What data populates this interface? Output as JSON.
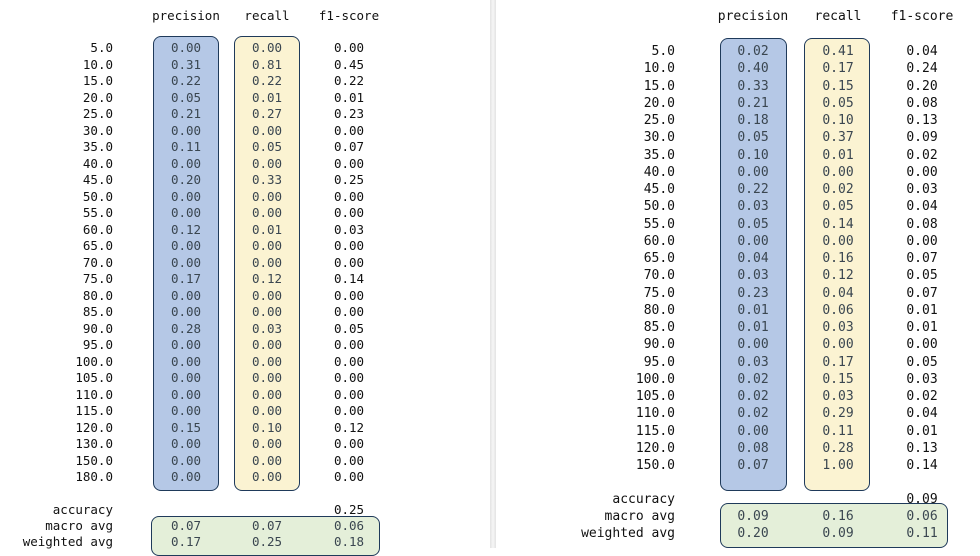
{
  "left": {
    "headers": [
      "precision",
      "recall",
      "f1-score"
    ],
    "rows": [
      {
        "label": "5.0",
        "precision": "0.00",
        "recall": "0.00",
        "f1": "0.00"
      },
      {
        "label": "10.0",
        "precision": "0.31",
        "recall": "0.81",
        "f1": "0.45"
      },
      {
        "label": "15.0",
        "precision": "0.22",
        "recall": "0.22",
        "f1": "0.22"
      },
      {
        "label": "20.0",
        "precision": "0.05",
        "recall": "0.01",
        "f1": "0.01"
      },
      {
        "label": "25.0",
        "precision": "0.21",
        "recall": "0.27",
        "f1": "0.23"
      },
      {
        "label": "30.0",
        "precision": "0.00",
        "recall": "0.00",
        "f1": "0.00"
      },
      {
        "label": "35.0",
        "precision": "0.11",
        "recall": "0.05",
        "f1": "0.07"
      },
      {
        "label": "40.0",
        "precision": "0.00",
        "recall": "0.00",
        "f1": "0.00"
      },
      {
        "label": "45.0",
        "precision": "0.20",
        "recall": "0.33",
        "f1": "0.25"
      },
      {
        "label": "50.0",
        "precision": "0.00",
        "recall": "0.00",
        "f1": "0.00"
      },
      {
        "label": "55.0",
        "precision": "0.00",
        "recall": "0.00",
        "f1": "0.00"
      },
      {
        "label": "60.0",
        "precision": "0.12",
        "recall": "0.01",
        "f1": "0.03"
      },
      {
        "label": "65.0",
        "precision": "0.00",
        "recall": "0.00",
        "f1": "0.00"
      },
      {
        "label": "70.0",
        "precision": "0.00",
        "recall": "0.00",
        "f1": "0.00"
      },
      {
        "label": "75.0",
        "precision": "0.17",
        "recall": "0.12",
        "f1": "0.14"
      },
      {
        "label": "80.0",
        "precision": "0.00",
        "recall": "0.00",
        "f1": "0.00"
      },
      {
        "label": "85.0",
        "precision": "0.00",
        "recall": "0.00",
        "f1": "0.00"
      },
      {
        "label": "90.0",
        "precision": "0.28",
        "recall": "0.03",
        "f1": "0.05"
      },
      {
        "label": "95.0",
        "precision": "0.00",
        "recall": "0.00",
        "f1": "0.00"
      },
      {
        "label": "100.0",
        "precision": "0.00",
        "recall": "0.00",
        "f1": "0.00"
      },
      {
        "label": "105.0",
        "precision": "0.00",
        "recall": "0.00",
        "f1": "0.00"
      },
      {
        "label": "110.0",
        "precision": "0.00",
        "recall": "0.00",
        "f1": "0.00"
      },
      {
        "label": "115.0",
        "precision": "0.00",
        "recall": "0.00",
        "f1": "0.00"
      },
      {
        "label": "120.0",
        "precision": "0.15",
        "recall": "0.10",
        "f1": "0.12"
      },
      {
        "label": "130.0",
        "precision": "0.00",
        "recall": "0.00",
        "f1": "0.00"
      },
      {
        "label": "150.0",
        "precision": "0.00",
        "recall": "0.00",
        "f1": "0.00"
      },
      {
        "label": "180.0",
        "precision": "0.00",
        "recall": "0.00",
        "f1": "0.00"
      }
    ],
    "accuracy": {
      "label": "accuracy",
      "f1": "0.25"
    },
    "macro_avg": {
      "label": "macro avg",
      "precision": "0.07",
      "recall": "0.07",
      "f1": "0.06"
    },
    "weighted_avg": {
      "label": "weighted avg",
      "precision": "0.17",
      "recall": "0.25",
      "f1": "0.18"
    }
  },
  "right": {
    "headers": [
      "precision",
      "recall",
      "f1-score"
    ],
    "rows": [
      {
        "label": "5.0",
        "precision": "0.02",
        "recall": "0.41",
        "f1": "0.04"
      },
      {
        "label": "10.0",
        "precision": "0.40",
        "recall": "0.17",
        "f1": "0.24"
      },
      {
        "label": "15.0",
        "precision": "0.33",
        "recall": "0.15",
        "f1": "0.20"
      },
      {
        "label": "20.0",
        "precision": "0.21",
        "recall": "0.05",
        "f1": "0.08"
      },
      {
        "label": "25.0",
        "precision": "0.18",
        "recall": "0.10",
        "f1": "0.13"
      },
      {
        "label": "30.0",
        "precision": "0.05",
        "recall": "0.37",
        "f1": "0.09"
      },
      {
        "label": "35.0",
        "precision": "0.10",
        "recall": "0.01",
        "f1": "0.02"
      },
      {
        "label": "40.0",
        "precision": "0.00",
        "recall": "0.00",
        "f1": "0.00"
      },
      {
        "label": "45.0",
        "precision": "0.22",
        "recall": "0.02",
        "f1": "0.03"
      },
      {
        "label": "50.0",
        "precision": "0.03",
        "recall": "0.05",
        "f1": "0.04"
      },
      {
        "label": "55.0",
        "precision": "0.05",
        "recall": "0.14",
        "f1": "0.08"
      },
      {
        "label": "60.0",
        "precision": "0.00",
        "recall": "0.00",
        "f1": "0.00"
      },
      {
        "label": "65.0",
        "precision": "0.04",
        "recall": "0.16",
        "f1": "0.07"
      },
      {
        "label": "70.0",
        "precision": "0.03",
        "recall": "0.12",
        "f1": "0.05"
      },
      {
        "label": "75.0",
        "precision": "0.23",
        "recall": "0.04",
        "f1": "0.07"
      },
      {
        "label": "80.0",
        "precision": "0.01",
        "recall": "0.06",
        "f1": "0.01"
      },
      {
        "label": "85.0",
        "precision": "0.01",
        "recall": "0.03",
        "f1": "0.01"
      },
      {
        "label": "90.0",
        "precision": "0.00",
        "recall": "0.00",
        "f1": "0.00"
      },
      {
        "label": "95.0",
        "precision": "0.03",
        "recall": "0.17",
        "f1": "0.05"
      },
      {
        "label": "100.0",
        "precision": "0.02",
        "recall": "0.15",
        "f1": "0.03"
      },
      {
        "label": "105.0",
        "precision": "0.02",
        "recall": "0.03",
        "f1": "0.02"
      },
      {
        "label": "110.0",
        "precision": "0.02",
        "recall": "0.29",
        "f1": "0.04"
      },
      {
        "label": "115.0",
        "precision": "0.00",
        "recall": "0.11",
        "f1": "0.01"
      },
      {
        "label": "120.0",
        "precision": "0.08",
        "recall": "0.28",
        "f1": "0.13"
      },
      {
        "label": "150.0",
        "precision": "0.07",
        "recall": "1.00",
        "f1": "0.14"
      }
    ],
    "accuracy": {
      "label": "accuracy",
      "f1": "0.09"
    },
    "macro_avg": {
      "label": "macro avg",
      "precision": "0.09",
      "recall": "0.16",
      "f1": "0.06"
    },
    "weighted_avg": {
      "label": "weighted avg",
      "precision": "0.20",
      "recall": "0.09",
      "f1": "0.11"
    }
  },
  "colors": {
    "precision_highlight": "#b5c8e6",
    "recall_highlight": "#fbf3d2",
    "average_highlight": "#e4efd9",
    "highlight_border": "#1f3a5a"
  }
}
